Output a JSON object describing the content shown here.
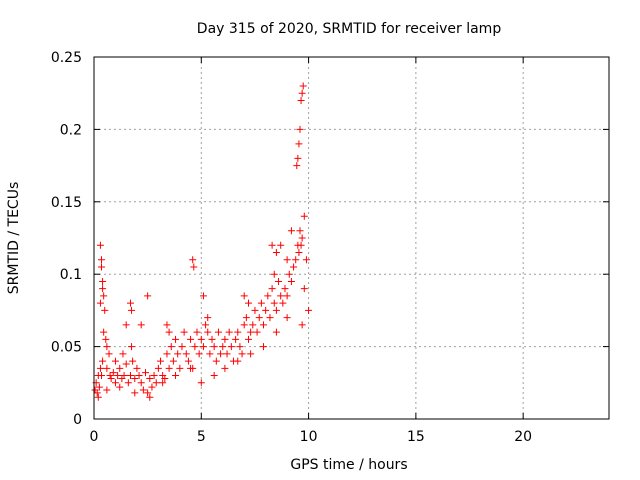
{
  "chart_data": {
    "type": "scatter",
    "title": "Day 315 of 2020, SRMTID for receiver lamp",
    "xlabel": "GPS time / hours",
    "ylabel": "SRMTID / TECUs",
    "xlim": [
      0,
      24
    ],
    "ylim": [
      0,
      0.25
    ],
    "xticks": [
      0,
      5,
      10,
      15,
      20
    ],
    "xtick_labels": [
      "0",
      "5",
      "10",
      "15",
      "20"
    ],
    "yticks": [
      0,
      0.05,
      0.1,
      0.15,
      0.2,
      0.25
    ],
    "ytick_labels": [
      "0",
      "0.05",
      "0.1",
      "0.15",
      "0.2",
      "0.25"
    ],
    "grid": true,
    "marker": "+",
    "color": "#ff0000",
    "series": [
      {
        "name": "SRMTID",
        "x": [
          0.05,
          0.1,
          0.15,
          0.2,
          0.25,
          0.3,
          0.3,
          0.35,
          0.35,
          0.4,
          0.4,
          0.45,
          0.5,
          0.55,
          0.6,
          0.6,
          0.7,
          0.75,
          0.8,
          0.9,
          1.0,
          1.0,
          1.1,
          1.2,
          1.3,
          1.35,
          1.4,
          1.5,
          1.6,
          1.7,
          1.75,
          1.8,
          1.9,
          2.0,
          2.1,
          2.2,
          2.3,
          2.4,
          2.5,
          2.6,
          2.7,
          2.8,
          2.9,
          3.0,
          3.1,
          3.2,
          3.3,
          3.4,
          3.5,
          3.6,
          3.7,
          3.8,
          3.9,
          4.0,
          4.1,
          4.2,
          4.3,
          4.4,
          4.5,
          4.6,
          4.7,
          4.8,
          4.9,
          5.0,
          5.1,
          5.2,
          5.3,
          5.4,
          5.5,
          5.6,
          5.7,
          5.8,
          5.9,
          6.0,
          6.1,
          6.2,
          6.3,
          6.4,
          6.5,
          6.6,
          6.7,
          6.8,
          6.9,
          7.0,
          7.1,
          7.2,
          7.3,
          7.4,
          7.5,
          7.6,
          7.7,
          7.8,
          7.9,
          8.0,
          8.1,
          8.2,
          8.3,
          8.4,
          8.5,
          8.6,
          8.7,
          8.8,
          8.9,
          9.0,
          9.1,
          9.2,
          9.3,
          9.4,
          9.5,
          9.55,
          9.6,
          9.65,
          9.7,
          9.8,
          9.9,
          10.0,
          0.3,
          0.35,
          0.4,
          0.45,
          1.5,
          1.7,
          1.75,
          2.2,
          2.5,
          3.4,
          3.5,
          4.6,
          4.65,
          5.1,
          5.3,
          7.0,
          7.2,
          8.3,
          8.4,
          8.5,
          8.7,
          9.0,
          9.2,
          9.45,
          9.5,
          9.55,
          9.6,
          9.65,
          9.7,
          9.75,
          9.8,
          0.2,
          0.6,
          1.2,
          1.9,
          2.6,
          3.2,
          3.8,
          4.5,
          5.0,
          5.6,
          6.1,
          6.7,
          7.3,
          7.9,
          8.5,
          9.0,
          9.7
        ],
        "y": [
          0.02,
          0.025,
          0.018,
          0.03,
          0.022,
          0.035,
          0.12,
          0.03,
          0.105,
          0.04,
          0.09,
          0.06,
          0.075,
          0.055,
          0.05,
          0.035,
          0.045,
          0.03,
          0.028,
          0.032,
          0.04,
          0.025,
          0.03,
          0.035,
          0.028,
          0.045,
          0.03,
          0.038,
          0.025,
          0.03,
          0.05,
          0.04,
          0.028,
          0.035,
          0.03,
          0.025,
          0.02,
          0.032,
          0.018,
          0.028,
          0.022,
          0.03,
          0.025,
          0.035,
          0.04,
          0.03,
          0.028,
          0.045,
          0.035,
          0.05,
          0.04,
          0.055,
          0.045,
          0.035,
          0.05,
          0.06,
          0.045,
          0.04,
          0.055,
          0.035,
          0.05,
          0.06,
          0.045,
          0.055,
          0.05,
          0.065,
          0.06,
          0.045,
          0.055,
          0.05,
          0.04,
          0.06,
          0.045,
          0.05,
          0.055,
          0.045,
          0.06,
          0.05,
          0.04,
          0.055,
          0.06,
          0.05,
          0.045,
          0.065,
          0.07,
          0.055,
          0.06,
          0.065,
          0.075,
          0.06,
          0.07,
          0.08,
          0.065,
          0.075,
          0.085,
          0.07,
          0.09,
          0.08,
          0.075,
          0.095,
          0.085,
          0.08,
          0.09,
          0.085,
          0.1,
          0.095,
          0.105,
          0.11,
          0.12,
          0.115,
          0.13,
          0.12,
          0.125,
          0.14,
          0.11,
          0.075,
          0.08,
          0.11,
          0.095,
          0.085,
          0.065,
          0.08,
          0.075,
          0.065,
          0.085,
          0.065,
          0.06,
          0.11,
          0.105,
          0.085,
          0.07,
          0.085,
          0.08,
          0.12,
          0.1,
          0.115,
          0.12,
          0.11,
          0.13,
          0.175,
          0.18,
          0.19,
          0.2,
          0.22,
          0.225,
          0.23,
          0.09,
          0.015,
          0.02,
          0.022,
          0.018,
          0.015,
          0.025,
          0.03,
          0.035,
          0.025,
          0.03,
          0.035,
          0.04,
          0.045,
          0.05,
          0.06,
          0.07,
          0.065
        ]
      }
    ]
  }
}
